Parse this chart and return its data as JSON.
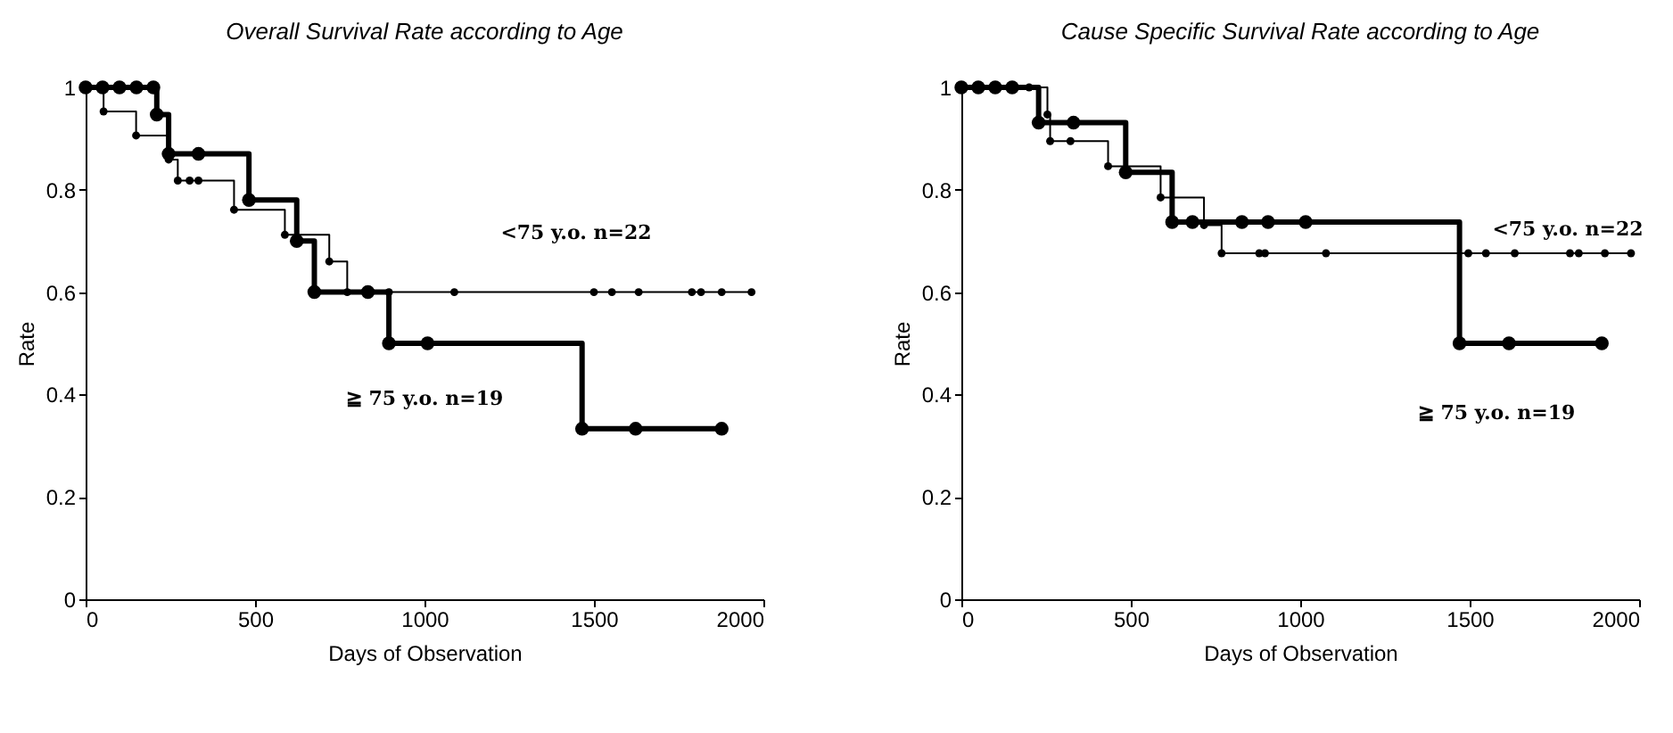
{
  "chart_data": [
    {
      "type": "step",
      "title": "Overall Survival Rate according to Age",
      "xlabel": "Days of Observation",
      "ylabel": "Rate",
      "xlim": [
        0,
        2000
      ],
      "xticks": [
        0,
        500,
        1000,
        1500,
        2000
      ],
      "ylim": [
        0,
        1
      ],
      "yticks": [
        0,
        0.2,
        0.4,
        0.6,
        0.8,
        1
      ],
      "grid": false,
      "marker": "circle",
      "series": [
        {
          "name": "<75 y.o. n=22",
          "color": "#000000",
          "x": [
            0,
            53,
            149,
            245,
            272,
            307,
            333,
            438,
            588,
            719,
            772,
            895,
            1088,
            1500,
            1553,
            1632,
            1789,
            1816,
            1877,
            1965
          ],
          "values": [
            1,
            0.953,
            0.906,
            0.859,
            0.818,
            0.818,
            0.818,
            0.761,
            0.712,
            0.66,
            0.6,
            0.6,
            0.6,
            0.6,
            0.6,
            0.6,
            0.6,
            0.6,
            0.6,
            0.6
          ]
        },
        {
          "name": "≧ 75 y.o. n=19",
          "color": "#000000",
          "x": [
            0,
            50,
            100,
            150,
            200,
            210,
            245,
            333,
            482,
            623,
            675,
            833,
            895,
            1009,
            1465,
            1623,
            1877
          ],
          "values": [
            1,
            1,
            1,
            1,
            1,
            0.947,
            0.87,
            0.87,
            0.78,
            0.7,
            0.6,
            0.6,
            0.5,
            0.5,
            0.333,
            0.333,
            0.333
          ]
        }
      ]
    },
    {
      "type": "step",
      "title": "Cause Specific Survival Rate according to Age",
      "xlabel": "Days of Observation",
      "ylabel": "Rate",
      "xlim": [
        0,
        2000
      ],
      "xticks": [
        0,
        500,
        1000,
        1500,
        2000
      ],
      "ylim": [
        0,
        1
      ],
      "yticks": [
        0,
        0.2,
        0.4,
        0.6,
        0.8,
        1
      ],
      "grid": false,
      "marker": "circle",
      "series": [
        {
          "name": "<75 y.o. n=22",
          "color": "#000000",
          "x": [
            0,
            50,
            100,
            150,
            200,
            254,
            262,
            322,
            433,
            588,
            716,
            768,
            879,
            896,
            1076,
            1496,
            1548,
            1633,
            1796,
            1822,
            1899,
            1976
          ],
          "values": [
            1,
            1,
            1,
            1,
            1,
            0.947,
            0.895,
            0.895,
            0.846,
            0.785,
            0.731,
            0.676,
            0.676,
            0.676,
            0.676,
            0.676,
            0.676,
            0.676,
            0.676,
            0.676,
            0.676,
            0.676
          ]
        },
        {
          "name": "≧ 75 y.o. n=19",
          "color": "#000000",
          "x": [
            0,
            50,
            100,
            150,
            228,
            331,
            485,
            622,
            682,
            828,
            905,
            1016,
            1470,
            1616,
            1890
          ],
          "values": [
            1,
            1,
            1,
            1,
            0.931,
            0.931,
            0.834,
            0.737,
            0.737,
            0.737,
            0.737,
            0.737,
            0.5,
            0.5,
            0.5
          ]
        }
      ]
    }
  ]
}
